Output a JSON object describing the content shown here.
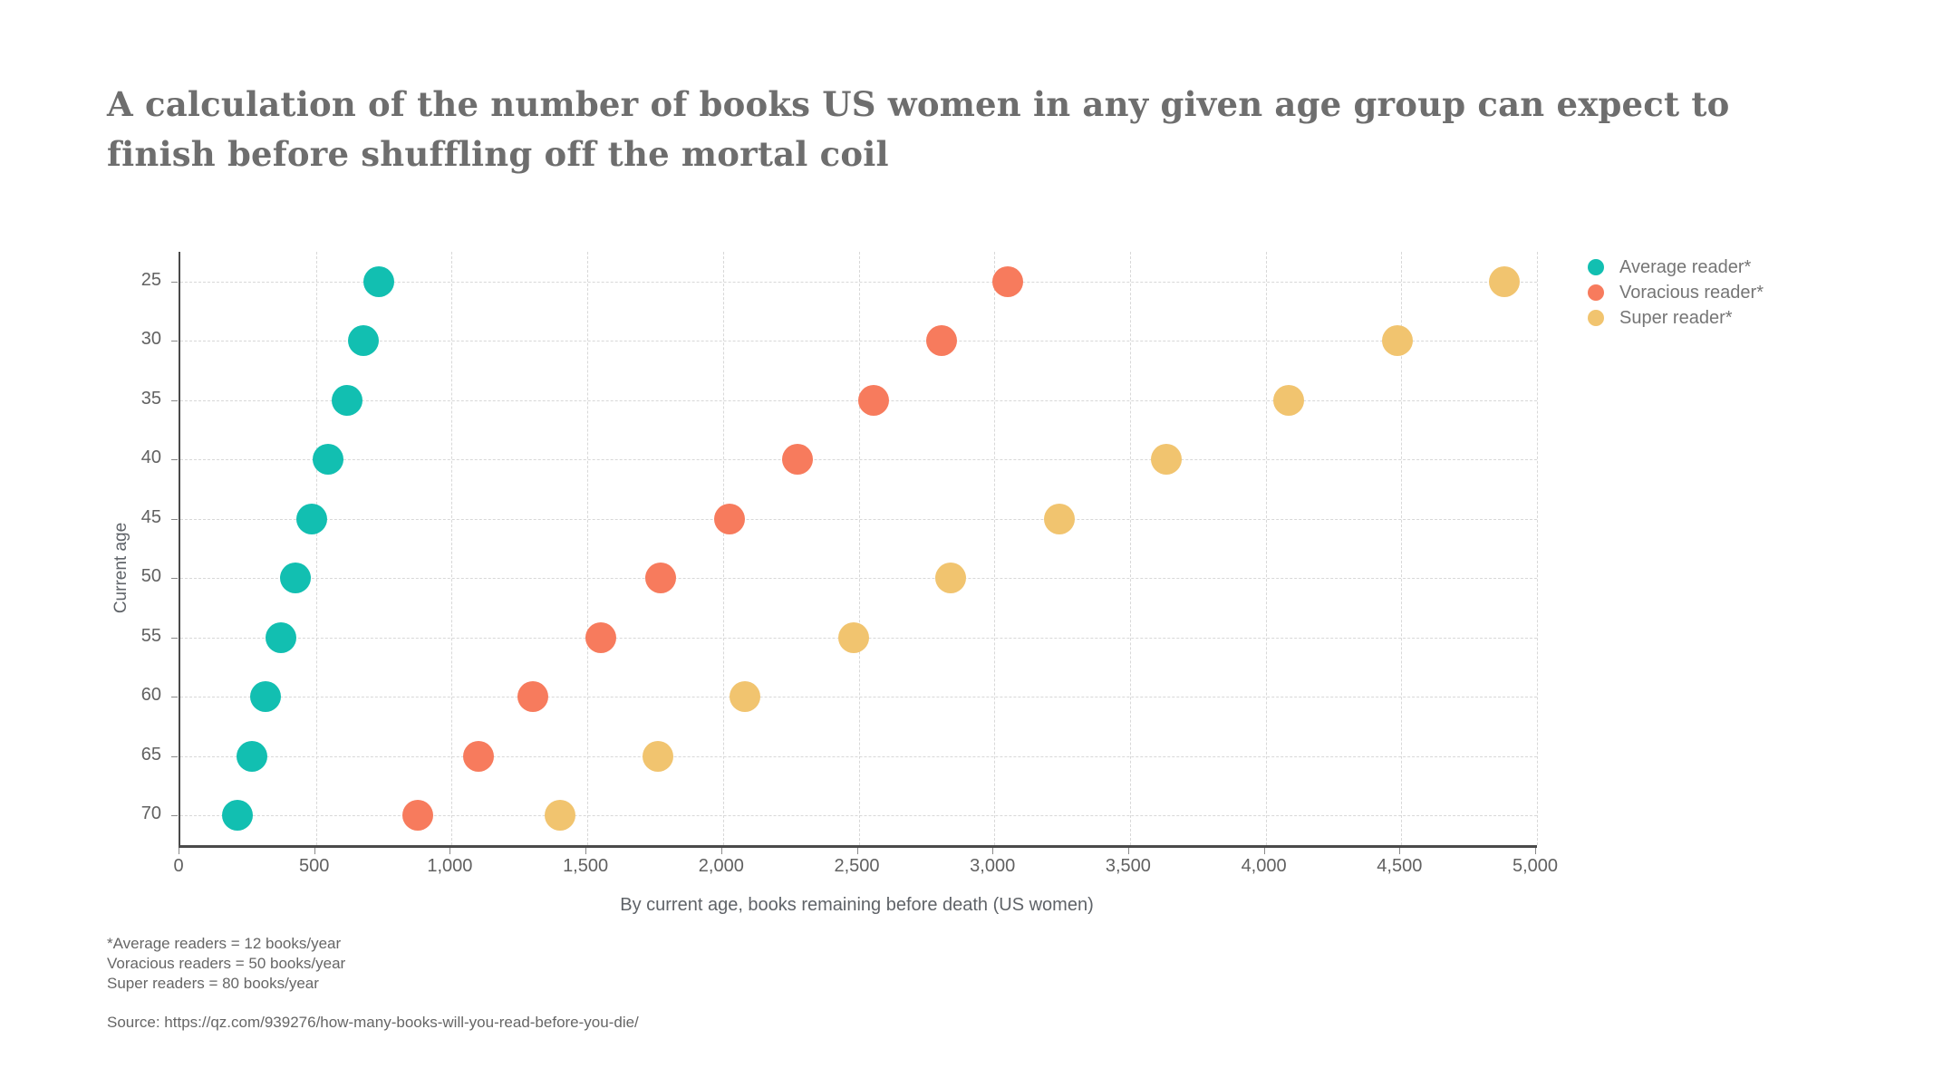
{
  "header": {
    "title_line1": "A calculation of the number of books US women in any given age group can expect to",
    "title_line2": "finish before shuffling off the mortal coil"
  },
  "axes": {
    "x_label": "By current age, books remaining before death (US women)",
    "y_label": "Current age",
    "x_tick_labels": [
      "0",
      "500",
      "1,000",
      "1,500",
      "2,000",
      "2,500",
      "3,000",
      "3,500",
      "4,000",
      "4,500",
      "5,000"
    ],
    "y_tick_labels": [
      "25",
      "30",
      "35",
      "40",
      "45",
      "50",
      "55",
      "60",
      "65",
      "70"
    ]
  },
  "footnotes": {
    "line1": "*Average readers = 12 books/year",
    "line2": "Voracious readers = 50 books/year",
    "line3": "Super readers = 80 books/year"
  },
  "source": "Source: https://qz.com/939276/how-many-books-will-you-read-before-you-die/",
  "colors": {
    "grid": "#d8d8d8",
    "axis": "#4a4a4a",
    "title_text": "#6e6e6e",
    "tick_text": "#616161"
  },
  "chart_data": {
    "type": "scatter",
    "title": "A calculation of the number of books US women in any given age group can expect to finish before shuffling off the mortal coil",
    "xlabel": "By current age, books remaining before death (US women)",
    "ylabel": "Current age",
    "xlim": [
      0,
      5000
    ],
    "x_ticks": [
      0,
      500,
      1000,
      1500,
      2000,
      2500,
      3000,
      3500,
      4000,
      4500,
      5000
    ],
    "y_categories": [
      25,
      30,
      35,
      40,
      45,
      50,
      55,
      60,
      65,
      70
    ],
    "grid": true,
    "legend_position": "top-right",
    "series": [
      {
        "name": "Average reader*",
        "color": "#12bfb1",
        "values": [
          730,
          675,
          615,
          545,
          485,
          425,
          370,
          315,
          265,
          210
        ]
      },
      {
        "name": "Voracious reader*",
        "color": "#f77b5d",
        "values": [
          3050,
          2805,
          2555,
          2275,
          2025,
          1770,
          1550,
          1300,
          1100,
          875
        ]
      },
      {
        "name": "Super reader*",
        "color": "#f1c46f",
        "values": [
          4880,
          4485,
          4085,
          3635,
          3240,
          2840,
          2480,
          2080,
          1760,
          1400
        ]
      }
    ]
  }
}
